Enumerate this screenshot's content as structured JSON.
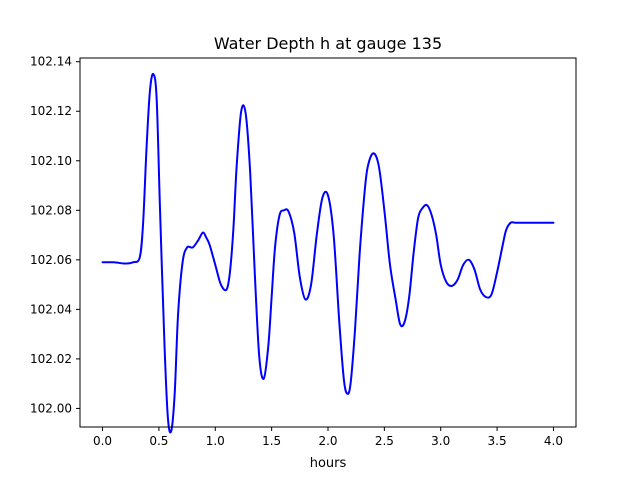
{
  "chart_data": {
    "type": "line",
    "title": "Water Depth h at gauge 135",
    "xlabel": "hours",
    "ylabel": "",
    "xlim": [
      -0.2,
      4.2
    ],
    "ylim": [
      101.9925,
      102.1415
    ],
    "xticks": [
      0.0,
      0.5,
      1.0,
      1.5,
      2.0,
      2.5,
      3.0,
      3.5,
      4.0
    ],
    "xtick_labels": [
      "0.0",
      "0.5",
      "1.0",
      "1.5",
      "2.0",
      "2.5",
      "3.0",
      "3.5",
      "4.0"
    ],
    "yticks": [
      102.0,
      102.02,
      102.04,
      102.06,
      102.08,
      102.1,
      102.12,
      102.14
    ],
    "ytick_labels": [
      "102.00",
      "102.02",
      "102.04",
      "102.06",
      "102.08",
      "102.10",
      "102.12",
      "102.14"
    ],
    "grid": false,
    "series": [
      {
        "color": "#0000ff",
        "x": [
          0.0,
          0.1,
          0.2,
          0.27,
          0.33,
          0.36,
          0.39,
          0.42,
          0.45,
          0.48,
          0.51,
          0.55,
          0.58,
          0.61,
          0.64,
          0.67,
          0.71,
          0.75,
          0.8,
          0.85,
          0.89,
          0.92,
          0.95,
          1.0,
          1.05,
          1.1,
          1.13,
          1.16,
          1.19,
          1.23,
          1.27,
          1.31,
          1.35,
          1.39,
          1.43,
          1.47,
          1.5,
          1.53,
          1.57,
          1.61,
          1.65,
          1.7,
          1.75,
          1.8,
          1.85,
          1.9,
          1.95,
          2.0,
          2.05,
          2.1,
          2.14,
          2.17,
          2.2,
          2.24,
          2.28,
          2.32,
          2.35,
          2.4,
          2.45,
          2.5,
          2.55,
          2.6,
          2.64,
          2.68,
          2.72,
          2.76,
          2.8,
          2.84,
          2.88,
          2.92,
          2.96,
          3.0,
          3.05,
          3.1,
          3.15,
          3.2,
          3.25,
          3.3,
          3.35,
          3.4,
          3.45,
          3.5,
          3.55,
          3.58,
          3.62,
          3.66,
          3.7,
          3.75,
          3.8,
          3.85,
          3.9,
          3.95,
          4.0
        ],
        "y": [
          102.059,
          102.059,
          102.0585,
          102.059,
          102.061,
          102.075,
          102.105,
          102.128,
          102.135,
          102.125,
          102.08,
          102.025,
          101.996,
          101.991,
          102.006,
          102.038,
          102.059,
          102.065,
          102.065,
          102.068,
          102.071,
          102.069,
          102.066,
          102.058,
          102.05,
          102.048,
          102.055,
          102.072,
          102.098,
          102.12,
          102.119,
          102.095,
          102.055,
          102.021,
          102.012,
          102.025,
          102.045,
          102.065,
          102.078,
          102.08,
          102.0795,
          102.071,
          102.053,
          102.044,
          102.05,
          102.07,
          102.085,
          102.086,
          102.07,
          102.035,
          102.012,
          102.006,
          102.01,
          102.032,
          102.062,
          102.085,
          102.097,
          102.103,
          102.098,
          102.08,
          102.058,
          102.044,
          102.034,
          102.035,
          102.045,
          102.063,
          102.077,
          102.081,
          102.082,
          102.078,
          102.07,
          102.058,
          102.051,
          102.0495,
          102.052,
          102.058,
          102.06,
          102.056,
          102.048,
          102.045,
          102.046,
          102.055,
          102.066,
          102.072,
          102.075,
          102.075,
          102.075,
          102.075,
          102.075,
          102.075,
          102.075,
          102.075,
          102.075
        ]
      }
    ]
  }
}
